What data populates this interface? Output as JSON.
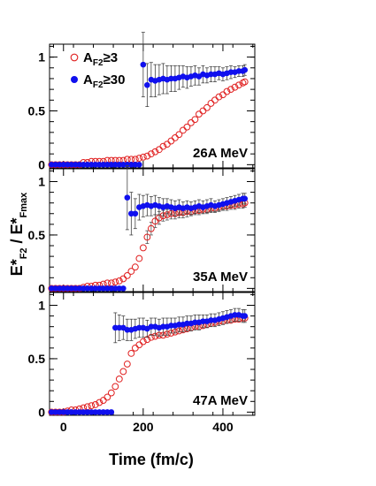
{
  "chart_data": {
    "type": "scatter",
    "x_axis": {
      "label": "Time (fm/c)",
      "range": [
        -35,
        480
      ],
      "ticks": [
        0,
        200,
        400
      ],
      "tick_labels": [
        "0",
        "200",
        "400"
      ]
    },
    "y_axis": {
      "label_main": "E*",
      "label_sub1": "F2",
      "label_mid": " / E*",
      "label_sub2": "Fmax",
      "range": [
        -0.03,
        1.12
      ],
      "ticks": [
        0,
        0.5,
        1
      ],
      "tick_labels": [
        "0",
        "0.5",
        "1"
      ]
    },
    "legend": {
      "placement": "top-left of top panel",
      "entries": [
        {
          "series": "Af2_ge_3",
          "prefix": "A",
          "sub": "F2",
          "suffix": "≥3",
          "marker": "open-circle",
          "color": "#e02020"
        },
        {
          "series": "Af2_ge_30",
          "prefix": "A",
          "sub": "F2",
          "suffix": "≥30",
          "marker": "filled-circle",
          "color": "#1010ee"
        }
      ]
    },
    "panels": [
      {
        "label": "26A MeV",
        "series": {
          "Af2_ge_3": {
            "x": [
              -30,
              -20,
              -10,
              0,
              10,
              20,
              30,
              40,
              50,
              60,
              70,
              80,
              90,
              100,
              110,
              120,
              130,
              140,
              150,
              160,
              170,
              180,
              190,
              200,
              210,
              220,
              230,
              240,
              250,
              260,
              270,
              280,
              290,
              300,
              310,
              320,
              330,
              340,
              350,
              360,
              370,
              380,
              390,
              400,
              410,
              420,
              430,
              440,
              450,
              455
            ],
            "y": [
              0,
              0,
              0,
              0,
              0,
              0,
              0,
              0,
              0.02,
              0.02,
              0.03,
              0.03,
              0.03,
              0.03,
              0.04,
              0.04,
              0.04,
              0.04,
              0.04,
              0.05,
              0.05,
              0.05,
              0.06,
              0.07,
              0.08,
              0.1,
              0.12,
              0.14,
              0.17,
              0.19,
              0.22,
              0.25,
              0.28,
              0.32,
              0.35,
              0.39,
              0.42,
              0.47,
              0.5,
              0.53,
              0.57,
              0.6,
              0.63,
              0.65,
              0.68,
              0.7,
              0.72,
              0.74,
              0.76,
              0.77
            ]
          },
          "Af2_ge_30": {
            "x": [
              -30,
              -20,
              -10,
              0,
              10,
              20,
              30,
              40,
              50,
              60,
              70,
              80,
              90,
              100,
              110,
              120,
              130,
              140,
              150,
              160,
              170,
              180,
              190,
              200,
              210,
              220,
              230,
              240,
              250,
              260,
              270,
              280,
              290,
              300,
              310,
              320,
              330,
              340,
              350,
              360,
              370,
              380,
              390,
              400,
              410,
              420,
              430,
              440,
              450,
              455
            ],
            "y": [
              0,
              0,
              0,
              0,
              0,
              0,
              0,
              0,
              0,
              0,
              0,
              0,
              0,
              0,
              0,
              0,
              0,
              0,
              0,
              0,
              0,
              0,
              0.0,
              0.93,
              0.74,
              0.79,
              0.78,
              0.79,
              0.8,
              0.79,
              0.8,
              0.8,
              0.81,
              0.82,
              0.81,
              0.82,
              0.83,
              0.82,
              0.84,
              0.83,
              0.84,
              0.84,
              0.85,
              0.84,
              0.85,
              0.86,
              0.86,
              0.87,
              0.87,
              0.88
            ],
            "err": [
              0,
              0,
              0,
              0,
              0,
              0,
              0,
              0,
              0,
              0,
              0,
              0,
              0,
              0,
              0,
              0,
              0,
              0,
              0,
              0,
              0,
              0,
              0,
              0.3,
              0.2,
              0.16,
              0.15,
              0.14,
              0.14,
              0.13,
              0.12,
              0.12,
              0.11,
              0.1,
              0.1,
              0.09,
              0.09,
              0.08,
              0.08,
              0.07,
              0.07,
              0.07,
              0.06,
              0.06,
              0.06,
              0.06,
              0.05,
              0.05,
              0.05,
              0.05
            ]
          }
        }
      },
      {
        "label": "35A MeV",
        "series": {
          "Af2_ge_3": {
            "x": [
              -30,
              -20,
              -10,
              0,
              10,
              20,
              30,
              40,
              50,
              60,
              70,
              80,
              90,
              100,
              110,
              120,
              130,
              140,
              150,
              160,
              170,
              180,
              190,
              200,
              210,
              220,
              230,
              240,
              250,
              260,
              270,
              280,
              290,
              300,
              310,
              320,
              330,
              340,
              350,
              360,
              370,
              380,
              390,
              400,
              410,
              420,
              430,
              440,
              450,
              455
            ],
            "y": [
              0,
              0,
              0,
              0,
              0,
              0,
              0,
              0,
              0.01,
              0.02,
              0.02,
              0.03,
              0.03,
              0.04,
              0.05,
              0.05,
              0.06,
              0.07,
              0.09,
              0.12,
              0.16,
              0.2,
              0.28,
              0.38,
              0.48,
              0.56,
              0.63,
              0.66,
              0.68,
              0.69,
              0.7,
              0.7,
              0.71,
              0.71,
              0.72,
              0.72,
              0.73,
              0.73,
              0.74,
              0.74,
              0.75,
              0.75,
              0.76,
              0.77,
              0.77,
              0.78,
              0.78,
              0.79,
              0.79,
              0.8
            ],
            "err": [
              0,
              0,
              0,
              0,
              0,
              0,
              0,
              0,
              0,
              0,
              0,
              0,
              0,
              0,
              0,
              0,
              0,
              0,
              0,
              0,
              0,
              0,
              0,
              0,
              0.06,
              0.06,
              0.06,
              0.06,
              0.05,
              0.05,
              0.05,
              0.05,
              0.05,
              0.05,
              0.05,
              0.04,
              0.04,
              0.04,
              0.04,
              0.04,
              0.04,
              0.04,
              0.04,
              0.04,
              0.04,
              0.04,
              0.04,
              0.04,
              0.04,
              0.04
            ]
          },
          "Af2_ge_30": {
            "x": [
              -30,
              -20,
              -10,
              0,
              10,
              20,
              30,
              40,
              50,
              60,
              70,
              80,
              90,
              100,
              110,
              120,
              130,
              140,
              150,
              160,
              170,
              180,
              190,
              200,
              210,
              220,
              230,
              240,
              250,
              260,
              270,
              280,
              290,
              300,
              310,
              320,
              330,
              340,
              350,
              360,
              370,
              380,
              390,
              400,
              410,
              420,
              430,
              440,
              450,
              455
            ],
            "y": [
              0,
              0,
              0,
              0,
              0,
              0,
              0,
              0,
              0,
              0,
              0,
              0,
              0,
              0,
              0,
              0,
              0,
              0,
              0,
              0.85,
              0.7,
              0.7,
              0.76,
              0.77,
              0.78,
              0.77,
              0.78,
              0.77,
              0.76,
              0.77,
              0.76,
              0.75,
              0.76,
              0.75,
              0.76,
              0.75,
              0.76,
              0.77,
              0.76,
              0.77,
              0.78,
              0.77,
              0.78,
              0.79,
              0.8,
              0.81,
              0.82,
              0.83,
              0.84,
              0.84
            ],
            "err": [
              0,
              0,
              0,
              0,
              0,
              0,
              0,
              0,
              0,
              0,
              0,
              0,
              0,
              0,
              0,
              0,
              0,
              0,
              0,
              0.3,
              0.2,
              0.14,
              0.12,
              0.1,
              0.1,
              0.09,
              0.09,
              0.08,
              0.08,
              0.07,
              0.07,
              0.07,
              0.07,
              0.06,
              0.06,
              0.06,
              0.06,
              0.06,
              0.06,
              0.06,
              0.06,
              0.05,
              0.05,
              0.05,
              0.05,
              0.05,
              0.05,
              0.05,
              0.05,
              0.05
            ]
          }
        }
      },
      {
        "label": "47A MeV",
        "series": {
          "Af2_ge_3": {
            "x": [
              -30,
              -20,
              -10,
              0,
              10,
              20,
              30,
              40,
              50,
              60,
              70,
              80,
              90,
              100,
              110,
              120,
              130,
              140,
              150,
              160,
              170,
              180,
              190,
              200,
              210,
              220,
              230,
              240,
              250,
              260,
              270,
              280,
              290,
              300,
              310,
              320,
              330,
              340,
              350,
              360,
              370,
              380,
              390,
              400,
              410,
              420,
              430,
              440,
              450,
              455
            ],
            "y": [
              0,
              0,
              0,
              0,
              0.01,
              0.02,
              0.02,
              0.03,
              0.04,
              0.05,
              0.06,
              0.07,
              0.09,
              0.11,
              0.14,
              0.18,
              0.24,
              0.31,
              0.38,
              0.45,
              0.55,
              0.6,
              0.63,
              0.66,
              0.68,
              0.7,
              0.71,
              0.72,
              0.72,
              0.73,
              0.74,
              0.75,
              0.76,
              0.77,
              0.78,
              0.79,
              0.8,
              0.8,
              0.81,
              0.82,
              0.83,
              0.84,
              0.85,
              0.85,
              0.86,
              0.86,
              0.87,
              0.87,
              0.88,
              0.88
            ],
            "err": [
              0,
              0,
              0,
              0,
              0,
              0,
              0,
              0,
              0,
              0,
              0,
              0,
              0,
              0,
              0,
              0,
              0,
              0,
              0,
              0,
              0,
              0,
              0,
              0,
              0,
              0,
              0,
              0,
              0,
              0,
              0,
              0,
              0,
              0,
              0,
              0,
              0,
              0,
              0,
              0,
              0,
              0,
              0,
              0,
              0,
              0,
              0,
              0,
              0,
              0
            ]
          },
          "Af2_ge_30": {
            "x": [
              -30,
              -20,
              -10,
              0,
              10,
              20,
              30,
              40,
              50,
              60,
              70,
              80,
              90,
              100,
              110,
              120,
              130,
              140,
              150,
              160,
              170,
              180,
              190,
              200,
              210,
              220,
              230,
              240,
              250,
              260,
              270,
              280,
              290,
              300,
              310,
              320,
              330,
              340,
              350,
              360,
              370,
              380,
              390,
              400,
              410,
              420,
              430,
              440,
              450,
              455
            ],
            "y": [
              0,
              0,
              0,
              0,
              0,
              0,
              0,
              0,
              0,
              0,
              0,
              0,
              0,
              0,
              0,
              0,
              0.79,
              0.79,
              0.79,
              0.77,
              0.77,
              0.78,
              0.79,
              0.79,
              0.78,
              0.8,
              0.8,
              0.79,
              0.8,
              0.8,
              0.81,
              0.81,
              0.82,
              0.82,
              0.83,
              0.83,
              0.84,
              0.84,
              0.85,
              0.85,
              0.86,
              0.86,
              0.87,
              0.88,
              0.89,
              0.9,
              0.91,
              0.91,
              0.9,
              0.9
            ],
            "err": [
              0,
              0,
              0,
              0,
              0,
              0,
              0,
              0,
              0,
              0,
              0,
              0,
              0,
              0,
              0,
              0,
              0.14,
              0.12,
              0.11,
              0.1,
              0.1,
              0.09,
              0.09,
              0.09,
              0.08,
              0.08,
              0.08,
              0.08,
              0.08,
              0.08,
              0.07,
              0.07,
              0.07,
              0.07,
              0.07,
              0.07,
              0.07,
              0.07,
              0.06,
              0.06,
              0.06,
              0.06,
              0.06,
              0.06,
              0.06,
              0.06,
              0.06,
              0.06,
              0.06,
              0.06
            ]
          }
        }
      }
    ]
  }
}
